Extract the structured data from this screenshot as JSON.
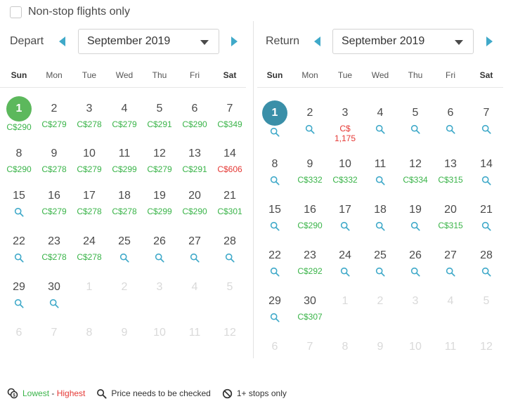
{
  "nonstop": {
    "label": "Non-stop flights only",
    "checked": false
  },
  "weekdays": [
    "Sun",
    "Mon",
    "Tue",
    "Wed",
    "Thu",
    "Fri",
    "Sat"
  ],
  "colors": {
    "accent": "#3fa9c9",
    "green": "#3ab449",
    "red": "#e53935",
    "depart_selected": "#5cb85c",
    "return_selected": "#3a8fa8"
  },
  "depart": {
    "label": "Depart",
    "month": "September 2019",
    "selected": 1,
    "weeks": [
      [
        {
          "d": "1",
          "p": "C$290",
          "c": "green",
          "sel": true
        },
        {
          "d": "2",
          "p": "C$279",
          "c": "green"
        },
        {
          "d": "3",
          "p": "C$278",
          "c": "green"
        },
        {
          "d": "4",
          "p": "C$279",
          "c": "green"
        },
        {
          "d": "5",
          "p": "C$291",
          "c": "green"
        },
        {
          "d": "6",
          "p": "C$290",
          "c": "green"
        },
        {
          "d": "7",
          "p": "C$349",
          "c": "green"
        }
      ],
      [
        {
          "d": "8",
          "p": "C$290",
          "c": "green"
        },
        {
          "d": "9",
          "p": "C$278",
          "c": "green"
        },
        {
          "d": "10",
          "p": "C$279",
          "c": "green"
        },
        {
          "d": "11",
          "p": "C$299",
          "c": "green"
        },
        {
          "d": "12",
          "p": "C$279",
          "c": "green"
        },
        {
          "d": "13",
          "p": "C$291",
          "c": "green"
        },
        {
          "d": "14",
          "p": "C$606",
          "c": "red"
        }
      ],
      [
        {
          "d": "15",
          "s": true
        },
        {
          "d": "16",
          "p": "C$279",
          "c": "green"
        },
        {
          "d": "17",
          "p": "C$278",
          "c": "green"
        },
        {
          "d": "18",
          "p": "C$278",
          "c": "green"
        },
        {
          "d": "19",
          "p": "C$299",
          "c": "green"
        },
        {
          "d": "20",
          "p": "C$290",
          "c": "green"
        },
        {
          "d": "21",
          "p": "C$301",
          "c": "green"
        }
      ],
      [
        {
          "d": "22",
          "s": true
        },
        {
          "d": "23",
          "p": "C$278",
          "c": "green"
        },
        {
          "d": "24",
          "p": "C$278",
          "c": "green"
        },
        {
          "d": "25",
          "s": true
        },
        {
          "d": "26",
          "s": true
        },
        {
          "d": "27",
          "s": true
        },
        {
          "d": "28",
          "s": true
        }
      ],
      [
        {
          "d": "29",
          "s": true
        },
        {
          "d": "30",
          "s": true
        },
        {
          "d": "1",
          "f": true
        },
        {
          "d": "2",
          "f": true
        },
        {
          "d": "3",
          "f": true
        },
        {
          "d": "4",
          "f": true
        },
        {
          "d": "5",
          "f": true
        }
      ],
      [
        {
          "d": "6",
          "f": true
        },
        {
          "d": "7",
          "f": true
        },
        {
          "d": "8",
          "f": true
        },
        {
          "d": "9",
          "f": true
        },
        {
          "d": "10",
          "f": true
        },
        {
          "d": "11",
          "f": true
        },
        {
          "d": "12",
          "f": true
        }
      ]
    ]
  },
  "return": {
    "label": "Return",
    "month": "September 2019",
    "selected": 1,
    "weeks": [
      [
        {
          "d": "1",
          "s": true,
          "sel": true
        },
        {
          "d": "2",
          "s": true
        },
        {
          "d": "3",
          "p": "C$",
          "p2": "1,175",
          "c": "red"
        },
        {
          "d": "4",
          "s": true
        },
        {
          "d": "5",
          "s": true
        },
        {
          "d": "6",
          "s": true
        },
        {
          "d": "7",
          "s": true
        }
      ],
      [
        {
          "d": "8",
          "s": true
        },
        {
          "d": "9",
          "p": "C$332",
          "c": "green"
        },
        {
          "d": "10",
          "p": "C$332",
          "c": "green"
        },
        {
          "d": "11",
          "s": true
        },
        {
          "d": "12",
          "p": "C$334",
          "c": "green"
        },
        {
          "d": "13",
          "p": "C$315",
          "c": "green"
        },
        {
          "d": "14",
          "s": true
        }
      ],
      [
        {
          "d": "15",
          "s": true
        },
        {
          "d": "16",
          "p": "C$290",
          "c": "green"
        },
        {
          "d": "17",
          "s": true
        },
        {
          "d": "18",
          "s": true
        },
        {
          "d": "19",
          "s": true
        },
        {
          "d": "20",
          "p": "C$315",
          "c": "green"
        },
        {
          "d": "21",
          "s": true
        }
      ],
      [
        {
          "d": "22",
          "s": true
        },
        {
          "d": "23",
          "p": "C$292",
          "c": "green"
        },
        {
          "d": "24",
          "s": true
        },
        {
          "d": "25",
          "s": true
        },
        {
          "d": "26",
          "s": true
        },
        {
          "d": "27",
          "s": true
        },
        {
          "d": "28",
          "s": true
        }
      ],
      [
        {
          "d": "29",
          "s": true
        },
        {
          "d": "30",
          "p": "C$307",
          "c": "green"
        },
        {
          "d": "1",
          "f": true
        },
        {
          "d": "2",
          "f": true
        },
        {
          "d": "3",
          "f": true
        },
        {
          "d": "4",
          "f": true
        },
        {
          "d": "5",
          "f": true
        }
      ],
      [
        {
          "d": "6",
          "f": true
        },
        {
          "d": "7",
          "f": true
        },
        {
          "d": "8",
          "f": true
        },
        {
          "d": "9",
          "f": true
        },
        {
          "d": "10",
          "f": true
        },
        {
          "d": "11",
          "f": true
        },
        {
          "d": "12",
          "f": true
        }
      ]
    ]
  },
  "legend": {
    "lowest": "Lowest",
    "sep": " - ",
    "highest": "Highest",
    "check": "Price needs to be checked",
    "stops": "1+ stops only"
  }
}
